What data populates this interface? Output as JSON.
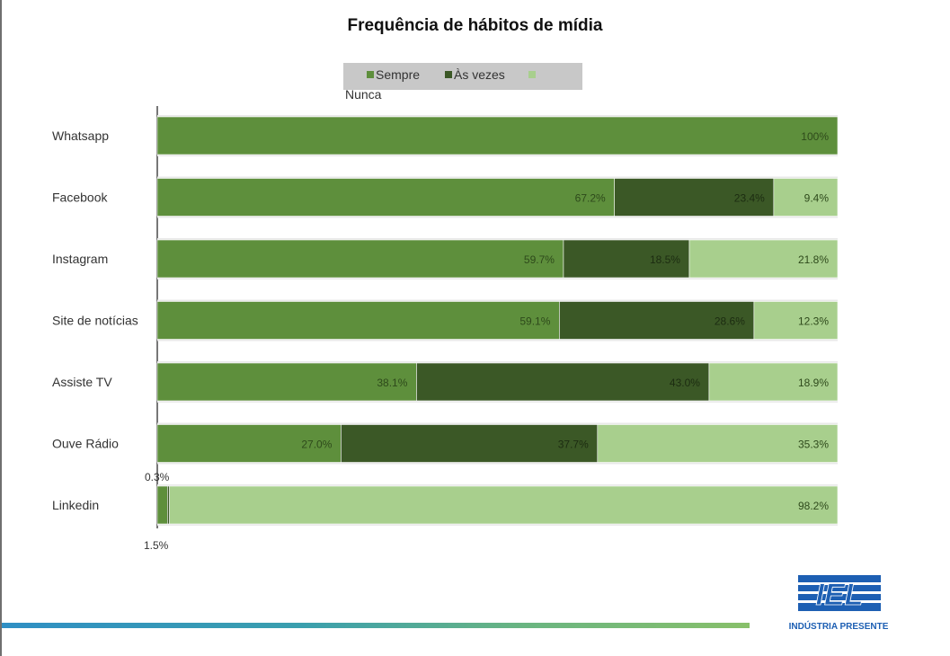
{
  "colors": {
    "sempre": "#5e8f3c",
    "as_vezes": "#3b5826",
    "nunca": "#a8cf8d"
  },
  "legend": {
    "sempre": "Sempre",
    "as_vezes": "Às vezes",
    "nunca": "Nunca"
  },
  "logo": {
    "mark": "IEL",
    "subtitle": "INDÚSTRIA PRESENTE"
  },
  "chart_data": {
    "type": "bar",
    "orientation": "horizontal",
    "stacked": true,
    "title": "Frequência de hábitos de mídia",
    "categories": [
      "Whatsapp",
      "Facebook",
      "Instagram",
      "Site de notícias",
      "Assiste TV",
      "Ouve Rádio",
      "Linkedin"
    ],
    "series": [
      {
        "name": "Sempre",
        "values": [
          100,
          67.2,
          59.7,
          59.1,
          38.1,
          27.0,
          1.5
        ],
        "labels": [
          "100%",
          "67.2%",
          "59.7%",
          "59.1%",
          "38.1%",
          "27.0%",
          "1.5%"
        ]
      },
      {
        "name": "Às vezes",
        "values": [
          0,
          23.4,
          18.5,
          28.6,
          43.0,
          37.7,
          0.3
        ],
        "labels": [
          "",
          "23.4%",
          "18.5%",
          "28.6%",
          "43.0%",
          "37.7%",
          "0.3%"
        ]
      },
      {
        "name": "Nunca",
        "values": [
          0,
          9.4,
          21.8,
          12.3,
          18.9,
          35.3,
          98.2
        ],
        "labels": [
          "",
          "9.4%",
          "21.8%",
          "12.3%",
          "18.9%",
          "35.3%",
          "98.2%"
        ]
      }
    ],
    "xlim": [
      0,
      100
    ],
    "legend_position": "top"
  }
}
